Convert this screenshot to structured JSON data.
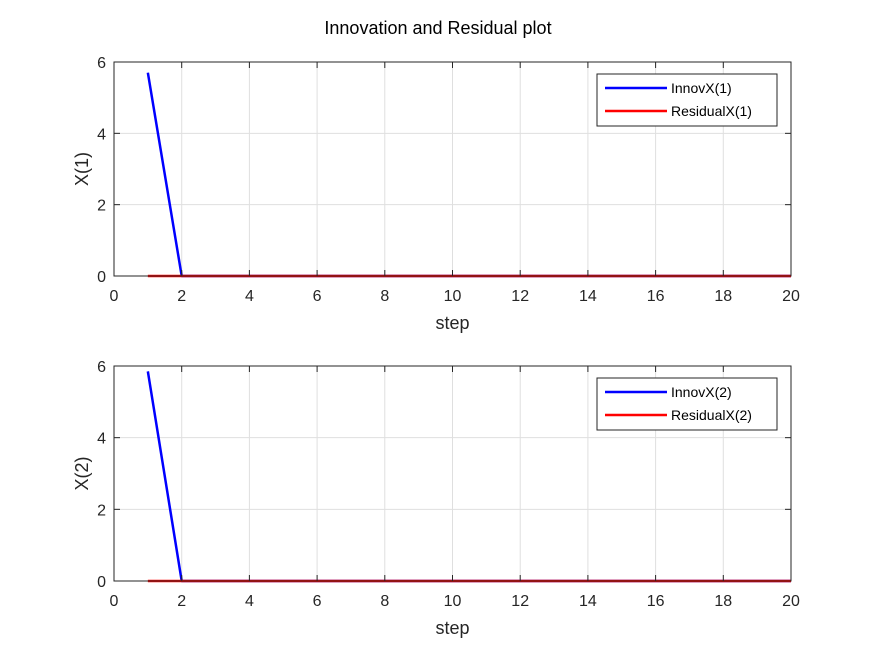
{
  "figure_title": "Innovation and Residual plot",
  "chart_data": [
    {
      "type": "line",
      "title": "Innovation and Residual plot",
      "xlabel": "step",
      "ylabel": "X(1)",
      "xlim": [
        0,
        20
      ],
      "ylim": [
        0,
        6
      ],
      "xticks": [
        0,
        2,
        4,
        6,
        8,
        10,
        12,
        14,
        16,
        18,
        20
      ],
      "yticks": [
        0,
        2,
        4,
        6
      ],
      "grid": true,
      "legend_position": "top-right",
      "series": [
        {
          "name": "InnovX(1)",
          "color": "#0000ff",
          "x": [
            1,
            2,
            3,
            4,
            5,
            6,
            7,
            8,
            9,
            10,
            11,
            12,
            13,
            14,
            15,
            16,
            17,
            18,
            19,
            20
          ],
          "y": [
            5.7,
            0,
            0,
            0,
            0,
            0,
            0,
            0,
            0,
            0,
            0,
            0,
            0,
            0,
            0,
            0,
            0,
            0,
            0,
            0
          ]
        },
        {
          "name": "ResidualX(1)",
          "color": "#ff0000",
          "x": [
            1,
            2,
            3,
            4,
            5,
            6,
            7,
            8,
            9,
            10,
            11,
            12,
            13,
            14,
            15,
            16,
            17,
            18,
            19,
            20
          ],
          "y": [
            0,
            0,
            0,
            0,
            0,
            0,
            0,
            0,
            0,
            0,
            0,
            0,
            0,
            0,
            0,
            0,
            0,
            0,
            0,
            0
          ]
        }
      ]
    },
    {
      "type": "line",
      "title": "",
      "xlabel": "step",
      "ylabel": "X(2)",
      "xlim": [
        0,
        20
      ],
      "ylim": [
        0,
        6
      ],
      "xticks": [
        0,
        2,
        4,
        6,
        8,
        10,
        12,
        14,
        16,
        18,
        20
      ],
      "yticks": [
        0,
        2,
        4,
        6
      ],
      "grid": true,
      "legend_position": "top-right",
      "series": [
        {
          "name": "InnovX(2)",
          "color": "#0000ff",
          "x": [
            1,
            2,
            3,
            4,
            5,
            6,
            7,
            8,
            9,
            10,
            11,
            12,
            13,
            14,
            15,
            16,
            17,
            18,
            19,
            20
          ],
          "y": [
            5.85,
            0,
            0,
            0,
            0,
            0,
            0,
            0,
            0,
            0,
            0,
            0,
            0,
            0,
            0,
            0,
            0,
            0,
            0,
            0
          ]
        },
        {
          "name": "ResidualX(2)",
          "color": "#ff0000",
          "x": [
            1,
            2,
            3,
            4,
            5,
            6,
            7,
            8,
            9,
            10,
            11,
            12,
            13,
            14,
            15,
            16,
            17,
            18,
            19,
            20
          ],
          "y": [
            0,
            0,
            0,
            0,
            0,
            0,
            0,
            0,
            0,
            0,
            0,
            0,
            0,
            0,
            0,
            0,
            0,
            0,
            0,
            0
          ]
        }
      ]
    }
  ]
}
